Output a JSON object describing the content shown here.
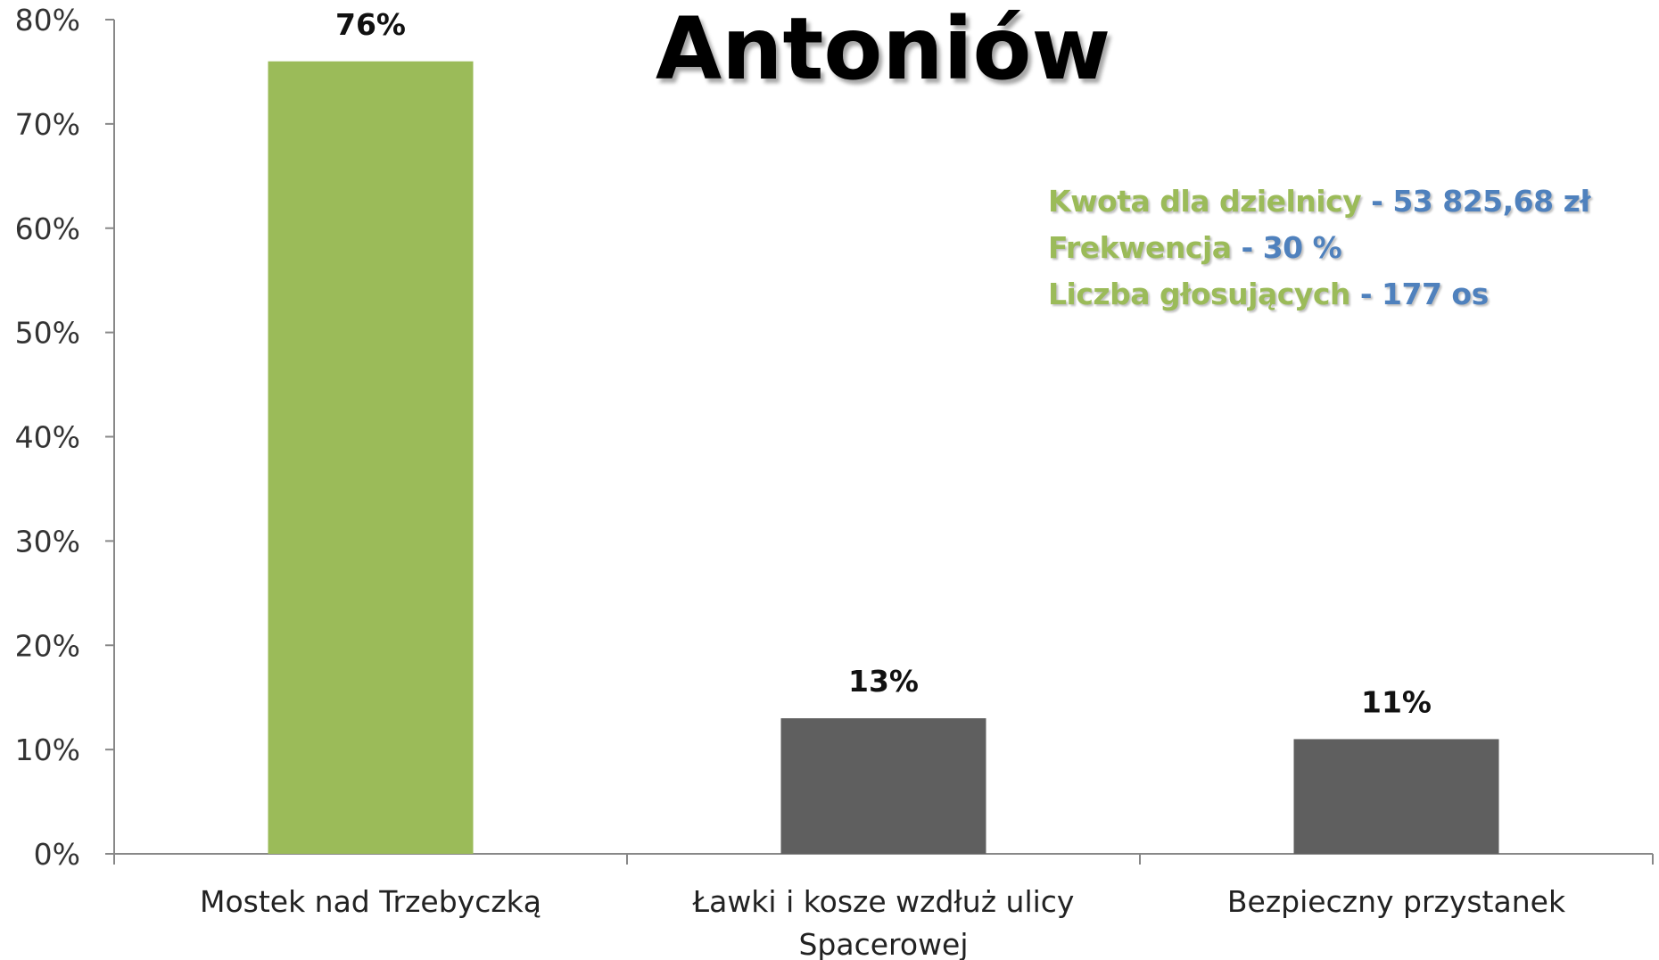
{
  "chart_data": {
    "type": "bar",
    "title": "Antoniów",
    "categories": [
      "Mostek nad Trzebyczką",
      "Ławki i kosze wzdłuż ulicy Spacerowej",
      "Bezpieczny przystanek"
    ],
    "category_lines": [
      [
        "Mostek nad Trzebyczką"
      ],
      [
        "Ławki i kosze wzdłuż ulicy",
        "Spacerowej"
      ],
      [
        "Bezpieczny przystanek"
      ]
    ],
    "values": [
      76,
      13,
      11
    ],
    "data_labels": [
      "76%",
      "13%",
      "11%"
    ],
    "bar_colors": [
      "#9bbb59",
      "#5f5f5f",
      "#5f5f5f"
    ],
    "ylim": [
      0,
      80
    ],
    "y_ticks": [
      0,
      10,
      20,
      30,
      40,
      50,
      60,
      70,
      80
    ],
    "y_tick_labels": [
      "0%",
      "10%",
      "20%",
      "30%",
      "40%",
      "50%",
      "60%",
      "70%",
      "80%"
    ],
    "xlabel": "",
    "ylabel": "",
    "grid": false,
    "legend": false
  },
  "info": {
    "lines": [
      {
        "label": "Kwota dla dzielnicy",
        "value": " - 53 825,68 zł"
      },
      {
        "label": "Frekwencja",
        "value": " - 30 %"
      },
      {
        "label": "Liczba głosujących",
        "value": " - 177 os"
      }
    ]
  },
  "colors": {
    "accent_green": "#9bbb59",
    "accent_blue": "#4f81bd",
    "bar_gray": "#5f5f5f",
    "axis": "#888888"
  }
}
